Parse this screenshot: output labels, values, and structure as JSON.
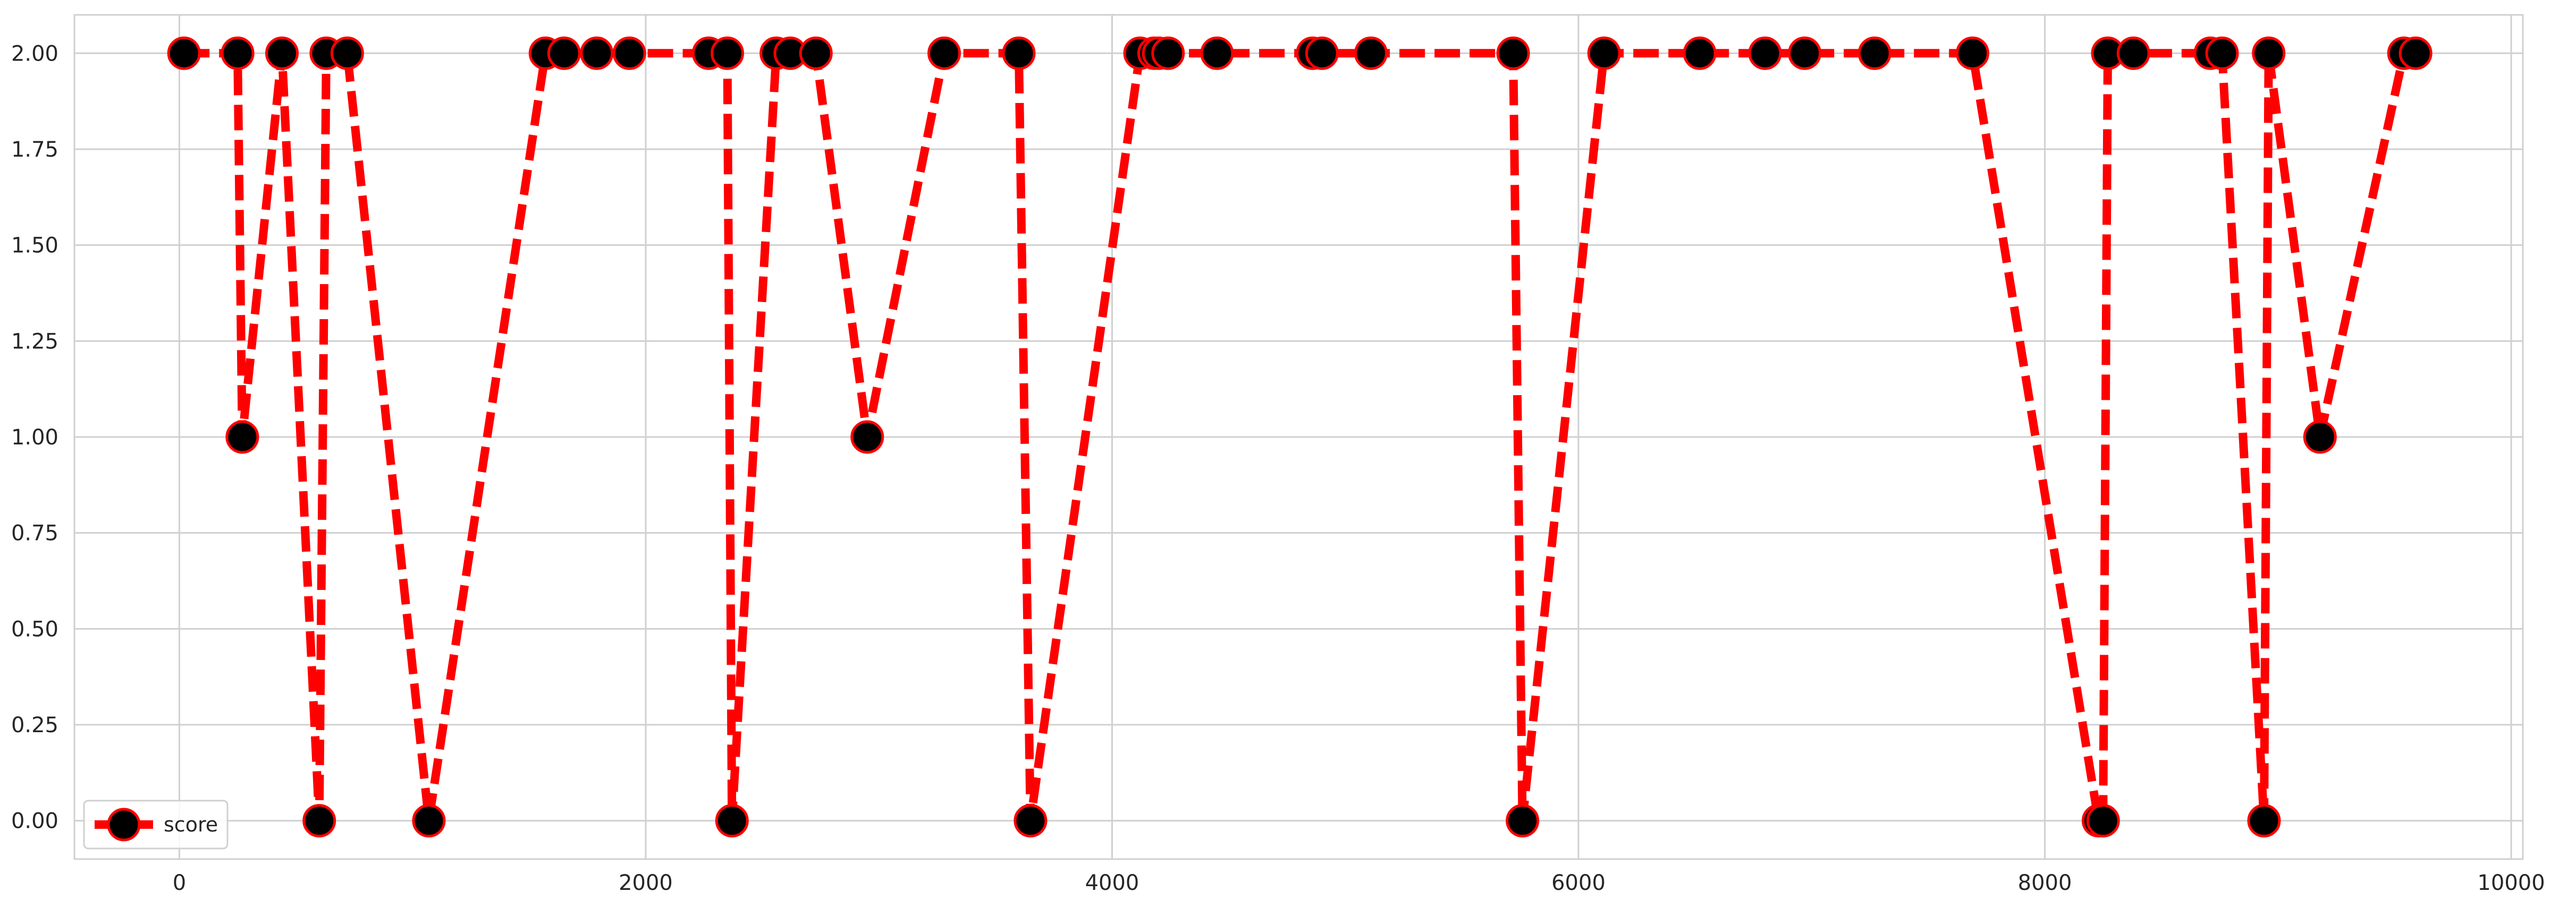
{
  "chart_data": {
    "type": "line",
    "title": "",
    "xlabel": "",
    "ylabel": "",
    "xlim": [
      -450,
      10050
    ],
    "ylim": [
      -0.1,
      2.1
    ],
    "xticks": [
      0,
      2000,
      4000,
      6000,
      8000,
      10000
    ],
    "xtick_labels": [
      "0",
      "2000",
      "4000",
      "6000",
      "8000",
      "10000"
    ],
    "yticks": [
      0.0,
      0.25,
      0.5,
      0.75,
      1.0,
      1.25,
      1.5,
      1.75,
      2.0
    ],
    "ytick_labels": [
      "0.00",
      "0.25",
      "0.50",
      "0.75",
      "1.00",
      "1.25",
      "1.50",
      "1.75",
      "2.00"
    ],
    "grid": true,
    "legend_position": "bottom-left",
    "series": [
      {
        "name": "score",
        "line_color": "#ff0000",
        "line_style": "dashed",
        "marker": "circle",
        "marker_face_color": "#000000",
        "marker_edge_color": "#ff0000",
        "x": [
          20,
          250,
          270,
          440,
          600,
          630,
          720,
          1070,
          1570,
          1650,
          1790,
          1930,
          2270,
          2350,
          2370,
          2560,
          2620,
          2730,
          2950,
          3280,
          3600,
          3650,
          4120,
          4180,
          4200,
          4240,
          4450,
          4860,
          4900,
          5110,
          5720,
          5760,
          6110,
          6520,
          6800,
          6970,
          7270,
          7690,
          8230,
          8250,
          8270,
          8380,
          8710,
          8760,
          8940,
          8960,
          9180,
          9540,
          9590
        ],
        "y": [
          2,
          2,
          1,
          2,
          0,
          2,
          2,
          0,
          2,
          2,
          2,
          2,
          2,
          2,
          0,
          2,
          2,
          2,
          1,
          2,
          2,
          0,
          2,
          2,
          2,
          2,
          2,
          2,
          2,
          2,
          2,
          0,
          2,
          2,
          2,
          2,
          2,
          2,
          0,
          0,
          2,
          2,
          2,
          2,
          0,
          2,
          1,
          2,
          2
        ]
      }
    ]
  }
}
